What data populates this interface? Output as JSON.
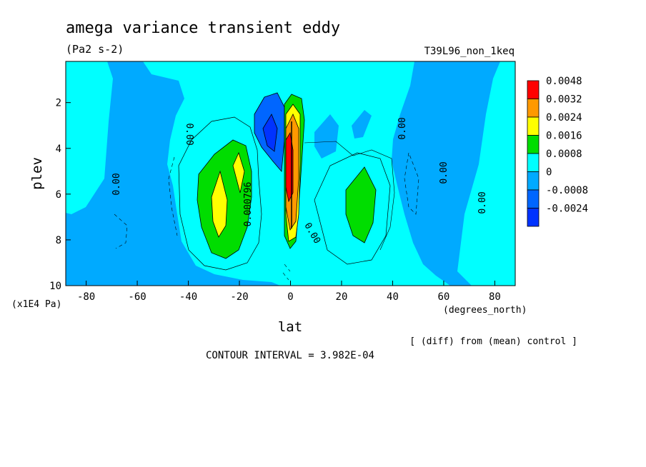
{
  "chart_data": {
    "type": "heatmap",
    "title": "amega variance transient eddy",
    "units": "(Pa2 s-2)",
    "run_label": "T39L96_non_1keq",
    "xlabel": "lat",
    "x_units": "(degrees_north)",
    "ylabel": "plev",
    "y_units": "(x1E4 Pa)",
    "xlim": [
      -88,
      88
    ],
    "ylim": [
      10,
      0.2
    ],
    "x_ticks": [
      -80,
      -60,
      -40,
      -20,
      0,
      20,
      40,
      60,
      80
    ],
    "x_tick_labels": [
      "-80",
      "-60",
      "-40",
      "-20",
      "0",
      "20",
      "40",
      "60",
      "80"
    ],
    "y_ticks": [
      2,
      4,
      6,
      8,
      10
    ],
    "y_tick_labels": [
      "2",
      "4",
      "6",
      "8",
      "10"
    ],
    "difference_note": "[ (diff) from (mean) control ]",
    "contour_interval": "CONTOUR INTERVAL = 3.982E-04",
    "colorbar": {
      "levels": [
        "0.0048",
        "0.0032",
        "0.0024",
        "0.0016",
        "0.0008",
        "0",
        "-0.0008",
        "-0.0024"
      ],
      "colors": [
        "#ff0000",
        "#ff9900",
        "#ffff00",
        "#00dd00",
        "#00ffff",
        "#00aaff",
        "#0066ff",
        "#0033ff"
      ]
    },
    "contour_labels": [
      {
        "text": "0.00",
        "lat": -68,
        "plev": 5.7
      },
      {
        "text": "0.00",
        "lat": -43,
        "plev": 3.0
      },
      {
        "text": "0.000796",
        "lat": -18,
        "plev": 6.3
      },
      {
        "text": "0.00",
        "lat": 45,
        "plev": 2.9
      },
      {
        "text": "0.00",
        "lat": 60,
        "plev": 5.0
      },
      {
        "text": "0.00",
        "lat": 75,
        "plev": 6.8
      },
      {
        "text": "0.00",
        "lat": 8,
        "plev": 8.2
      }
    ],
    "features": [
      {
        "value_range": [
          "0.0008",
          "0.0016"
        ],
        "lat": -25,
        "plev": 6.0
      },
      {
        "value_range": [
          "0.0008",
          "0.0016"
        ],
        "lat": 30,
        "plev": 6.4
      },
      {
        "value_range": [
          "0.0032",
          "0.0048+"
        ],
        "lat": 1,
        "plev": 5.0
      },
      {
        "value_range": [
          "-0.0024",
          "-0.0008"
        ],
        "lat": -7,
        "plev": 3.0
      }
    ]
  }
}
